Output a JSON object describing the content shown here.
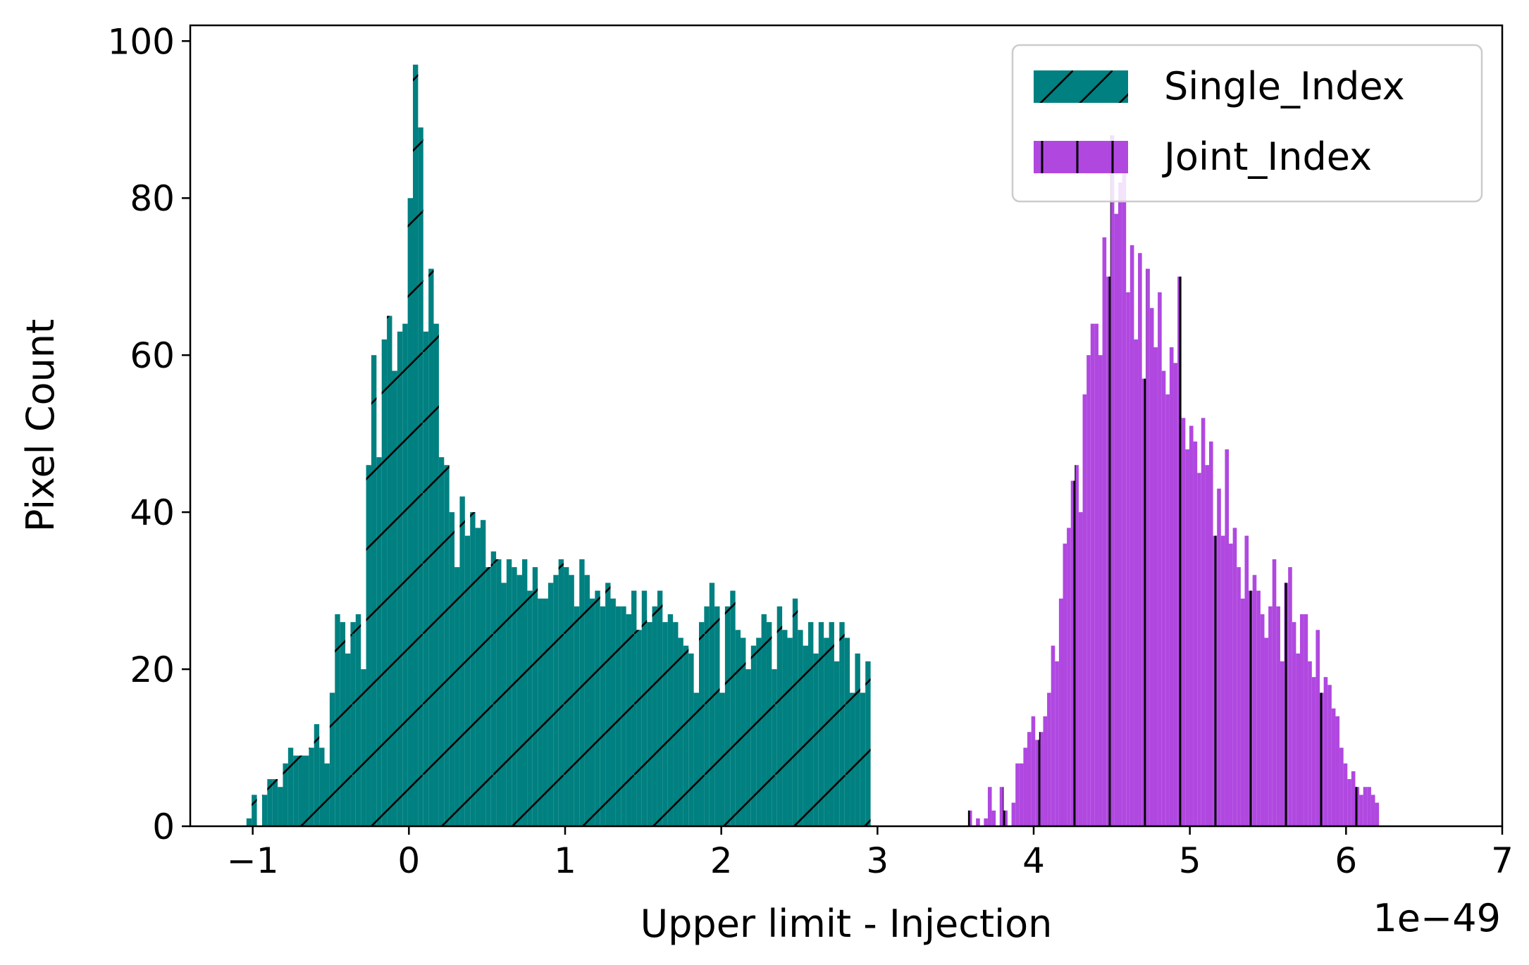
{
  "chart_data": {
    "type": "bar",
    "xlabel": "Upper limit - Injection",
    "ylabel": "Pixel Count",
    "x_offset_label": "1e−49",
    "xlim": [
      -1.4,
      7.0
    ],
    "ylim": [
      0,
      102
    ],
    "x_ticks": [
      -1,
      0,
      1,
      2,
      3,
      4,
      5,
      6,
      7
    ],
    "x_tick_labels": [
      "−1",
      "0",
      "1",
      "2",
      "3",
      "4",
      "5",
      "6",
      "7"
    ],
    "y_ticks": [
      0,
      20,
      40,
      60,
      80,
      100
    ],
    "y_tick_labels": [
      "0",
      "20",
      "40",
      "60",
      "80",
      "100"
    ],
    "grid": false,
    "legend_position": "top-right",
    "series": [
      {
        "name": "Single_Index",
        "color": "#008080",
        "hatch": "diagonal",
        "bin_start": -1.04,
        "bin_width": 0.0333,
        "values": [
          1,
          4,
          0,
          4,
          6,
          6,
          5,
          8,
          10,
          9,
          9,
          9,
          10,
          13,
          10,
          8,
          17,
          27,
          26,
          22,
          26,
          27,
          20,
          46,
          60,
          47,
          62,
          65,
          58,
          63,
          64,
          80,
          97,
          89,
          63,
          71,
          64,
          47,
          46,
          40,
          33,
          42,
          37,
          40,
          38,
          39,
          33,
          35,
          34,
          31,
          34,
          33,
          32,
          34,
          30,
          33,
          29,
          29,
          31,
          32,
          34,
          33,
          32,
          28,
          34,
          32,
          29,
          30,
          28,
          31,
          29,
          28,
          28,
          27,
          30,
          25,
          30,
          26,
          28,
          30,
          26,
          27,
          26,
          24,
          23,
          22,
          17,
          26,
          28,
          31,
          28,
          17,
          28,
          30,
          25,
          24,
          20,
          23,
          24,
          27,
          26,
          20,
          28,
          25,
          24,
          29,
          25,
          23,
          26,
          22,
          26,
          24,
          26,
          21,
          26,
          24,
          17,
          22,
          17,
          21
        ]
      },
      {
        "name": "Joint_Index",
        "color": "#b048e0",
        "hatch": "vertical",
        "bin_start": 3.58,
        "bin_width": 0.0253,
        "values": [
          2,
          0,
          1,
          0,
          1,
          5,
          2,
          0,
          5,
          2,
          0,
          3,
          8,
          8,
          10,
          12,
          14,
          11,
          12,
          14,
          17,
          23,
          21,
          29,
          36,
          38,
          44,
          46,
          40,
          55,
          60,
          64,
          64,
          60,
          75,
          70,
          88,
          78,
          82,
          84,
          68,
          74,
          62,
          73,
          57,
          71,
          66,
          61,
          68,
          58,
          55,
          61,
          59,
          70,
          52,
          48,
          51,
          49,
          45,
          52,
          46,
          49,
          37,
          43,
          37,
          48,
          36,
          38,
          33,
          29,
          37,
          30,
          32,
          30,
          27,
          24,
          28,
          34,
          28,
          21,
          31,
          33,
          26,
          22,
          27,
          27,
          21,
          19,
          25,
          17,
          19,
          18,
          15,
          14,
          10,
          8,
          6,
          7,
          5,
          4,
          5,
          5,
          4,
          3
        ]
      }
    ]
  }
}
